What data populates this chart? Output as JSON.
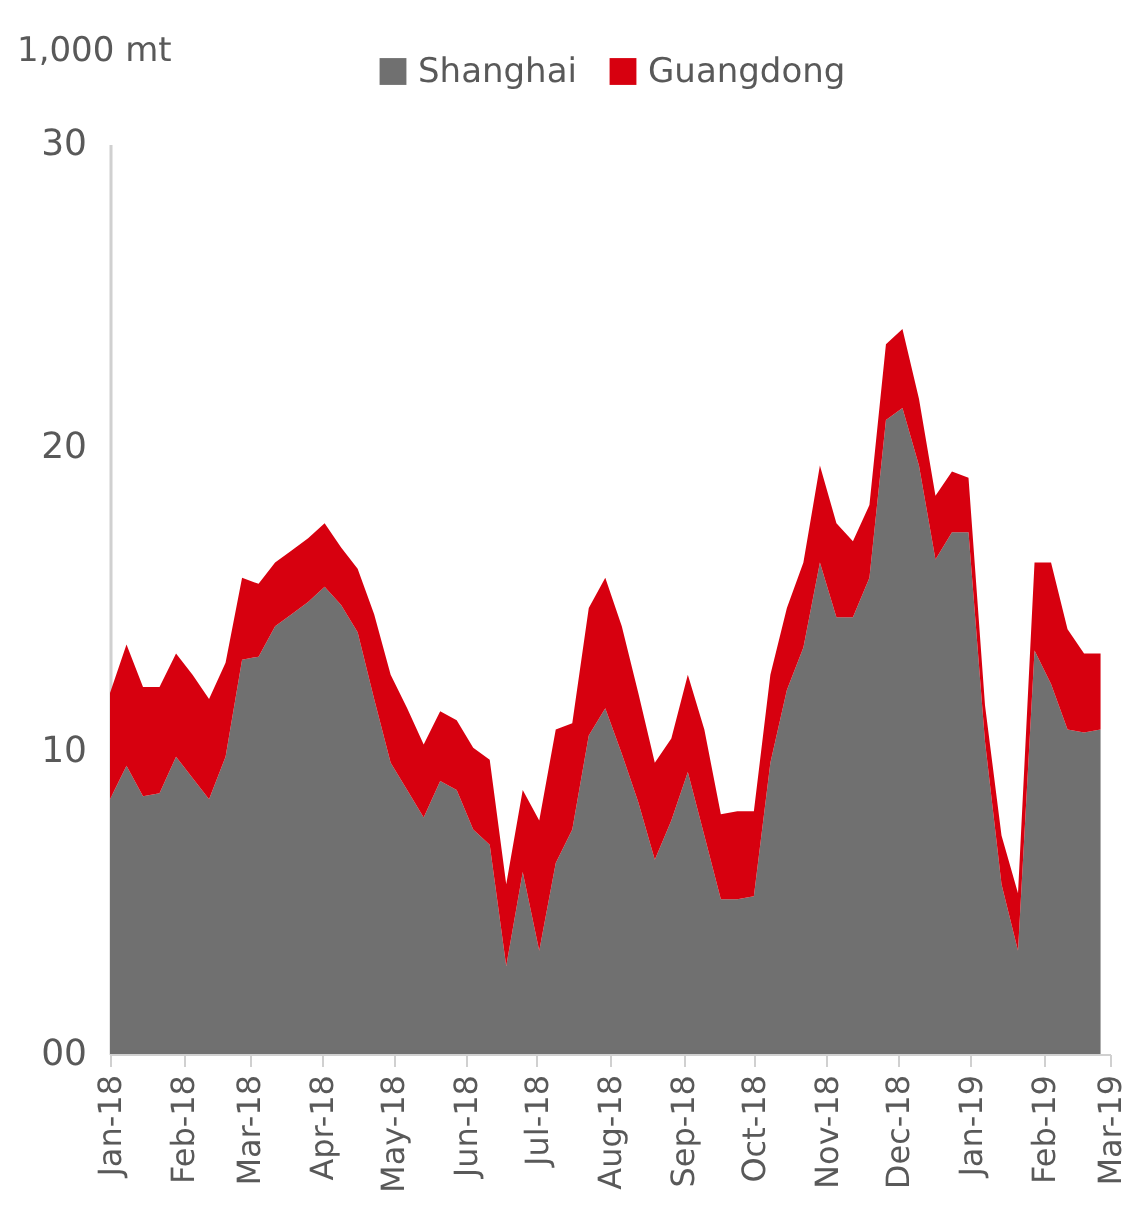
{
  "chart_data": {
    "type": "area",
    "stacked": true,
    "ylabel": "1,000 mt",
    "legend": "top",
    "x": [
      "2018-01-01",
      "2018-01-08",
      "2018-01-15",
      "2018-01-22",
      "2018-01-29",
      "2018-02-05",
      "2018-02-12",
      "2018-02-19",
      "2018-02-26",
      "2018-03-05",
      "2018-03-12",
      "2018-03-19",
      "2018-03-26",
      "2018-04-02",
      "2018-04-09",
      "2018-04-16",
      "2018-04-23",
      "2018-04-30",
      "2018-05-07",
      "2018-05-14",
      "2018-05-21",
      "2018-05-28",
      "2018-06-04",
      "2018-06-11",
      "2018-06-18",
      "2018-06-25",
      "2018-07-02",
      "2018-07-09",
      "2018-07-16",
      "2018-07-23",
      "2018-07-30",
      "2018-08-06",
      "2018-08-13",
      "2018-08-20",
      "2018-08-27",
      "2018-09-03",
      "2018-09-10",
      "2018-09-17",
      "2018-09-24",
      "2018-10-01",
      "2018-10-08",
      "2018-10-15",
      "2018-10-22",
      "2018-10-29",
      "2018-11-05",
      "2018-11-12",
      "2018-11-19",
      "2018-11-26",
      "2018-12-03",
      "2018-12-10",
      "2018-12-17",
      "2018-12-24",
      "2018-12-31",
      "2019-01-07",
      "2019-01-14",
      "2019-01-21",
      "2019-01-28",
      "2019-02-04",
      "2019-02-11",
      "2019-02-18",
      "2019-02-25"
    ],
    "series": [
      {
        "name": "Shanghai",
        "color": "#707070",
        "values": [
          8.4,
          9.5,
          8.5,
          8.6,
          9.8,
          9.1,
          8.4,
          9.8,
          13.0,
          13.1,
          14.1,
          14.5,
          14.9,
          15.4,
          14.8,
          13.9,
          11.7,
          9.6,
          8.7,
          7.8,
          9.0,
          8.7,
          7.4,
          6.9,
          2.9,
          6.0,
          3.4,
          6.3,
          7.4,
          10.5,
          11.4,
          9.9,
          8.3,
          6.4,
          7.7,
          9.3,
          7.2,
          5.1,
          5.1,
          5.2,
          9.6,
          12.0,
          13.4,
          16.2,
          14.4,
          14.4,
          15.7,
          20.9,
          21.3,
          19.4,
          16.3,
          17.2,
          17.2,
          10.3,
          5.6,
          3.4,
          13.3,
          12.2,
          10.7,
          10.6,
          10.7
        ]
      },
      {
        "name": "Guangdong",
        "color": "#d7000f",
        "values": [
          3.5,
          4.0,
          3.6,
          3.5,
          3.4,
          3.4,
          3.3,
          3.1,
          2.7,
          2.4,
          2.1,
          2.1,
          2.1,
          2.1,
          1.9,
          2.1,
          2.8,
          2.9,
          2.7,
          2.4,
          2.3,
          2.3,
          2.7,
          2.8,
          2.7,
          2.7,
          4.3,
          4.4,
          3.5,
          4.2,
          4.3,
          4.2,
          3.6,
          3.2,
          2.7,
          3.2,
          3.5,
          2.8,
          2.9,
          2.8,
          2.9,
          2.7,
          2.8,
          3.2,
          3.1,
          2.5,
          2.4,
          2.5,
          2.6,
          2.2,
          2.1,
          2.0,
          1.8,
          1.2,
          1.6,
          1.9,
          2.9,
          4.0,
          3.3,
          2.6,
          2.5
        ]
      }
    ],
    "xlim": [
      "2018-01-01",
      "2019-03-01"
    ],
    "xticks": [
      {
        "value": "2018-01-01",
        "label": "Jan-18"
      },
      {
        "value": "2018-02-01",
        "label": "Feb-18"
      },
      {
        "value": "2018-03-01",
        "label": "Mar-18"
      },
      {
        "value": "2018-04-01",
        "label": "Apr-18"
      },
      {
        "value": "2018-05-01",
        "label": "May-18"
      },
      {
        "value": "2018-06-01",
        "label": "Jun-18"
      },
      {
        "value": "2018-07-01",
        "label": "Jul-18"
      },
      {
        "value": "2018-08-01",
        "label": "Aug-18"
      },
      {
        "value": "2018-09-01",
        "label": "Sep-18"
      },
      {
        "value": "2018-10-01",
        "label": "Oct-18"
      },
      {
        "value": "2018-11-01",
        "label": "Nov-18"
      },
      {
        "value": "2018-12-01",
        "label": "Dec-18"
      },
      {
        "value": "2019-01-01",
        "label": "Jan-19"
      },
      {
        "value": "2019-02-01",
        "label": "Feb-19"
      },
      {
        "value": "2019-03-01",
        "label": "Mar-19"
      }
    ],
    "ylim": [
      0,
      30
    ],
    "yticks": [
      {
        "value": 0,
        "label": "00"
      },
      10,
      20,
      30
    ]
  }
}
